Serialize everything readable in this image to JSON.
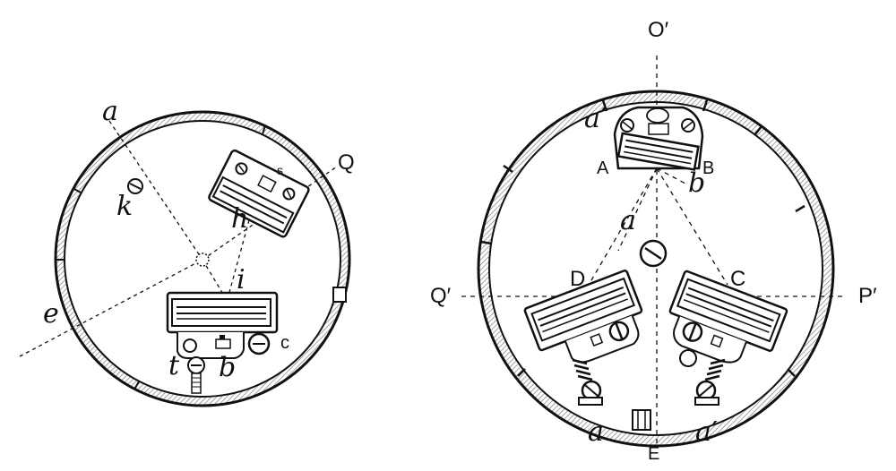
{
  "left_figure": {
    "labels": {
      "a": "a",
      "Q": "Q",
      "s": "s",
      "k": "k",
      "h": "h",
      "i": "i",
      "e": "e",
      "t": "t",
      "b": "b",
      "c": "c"
    }
  },
  "right_figure": {
    "labels": {
      "O_prime": "O′",
      "a_prime_top": "a′",
      "A": "A",
      "B": "B",
      "b": "b",
      "a": "a",
      "D": "D",
      "C": "C",
      "Q_prime": "Q′",
      "P_prime": "P′",
      "a_bottom": "a",
      "E": "E",
      "a_prime_bottom": "a′"
    }
  },
  "colors": {
    "ink": "#111111",
    "paper": "#ffffff"
  }
}
